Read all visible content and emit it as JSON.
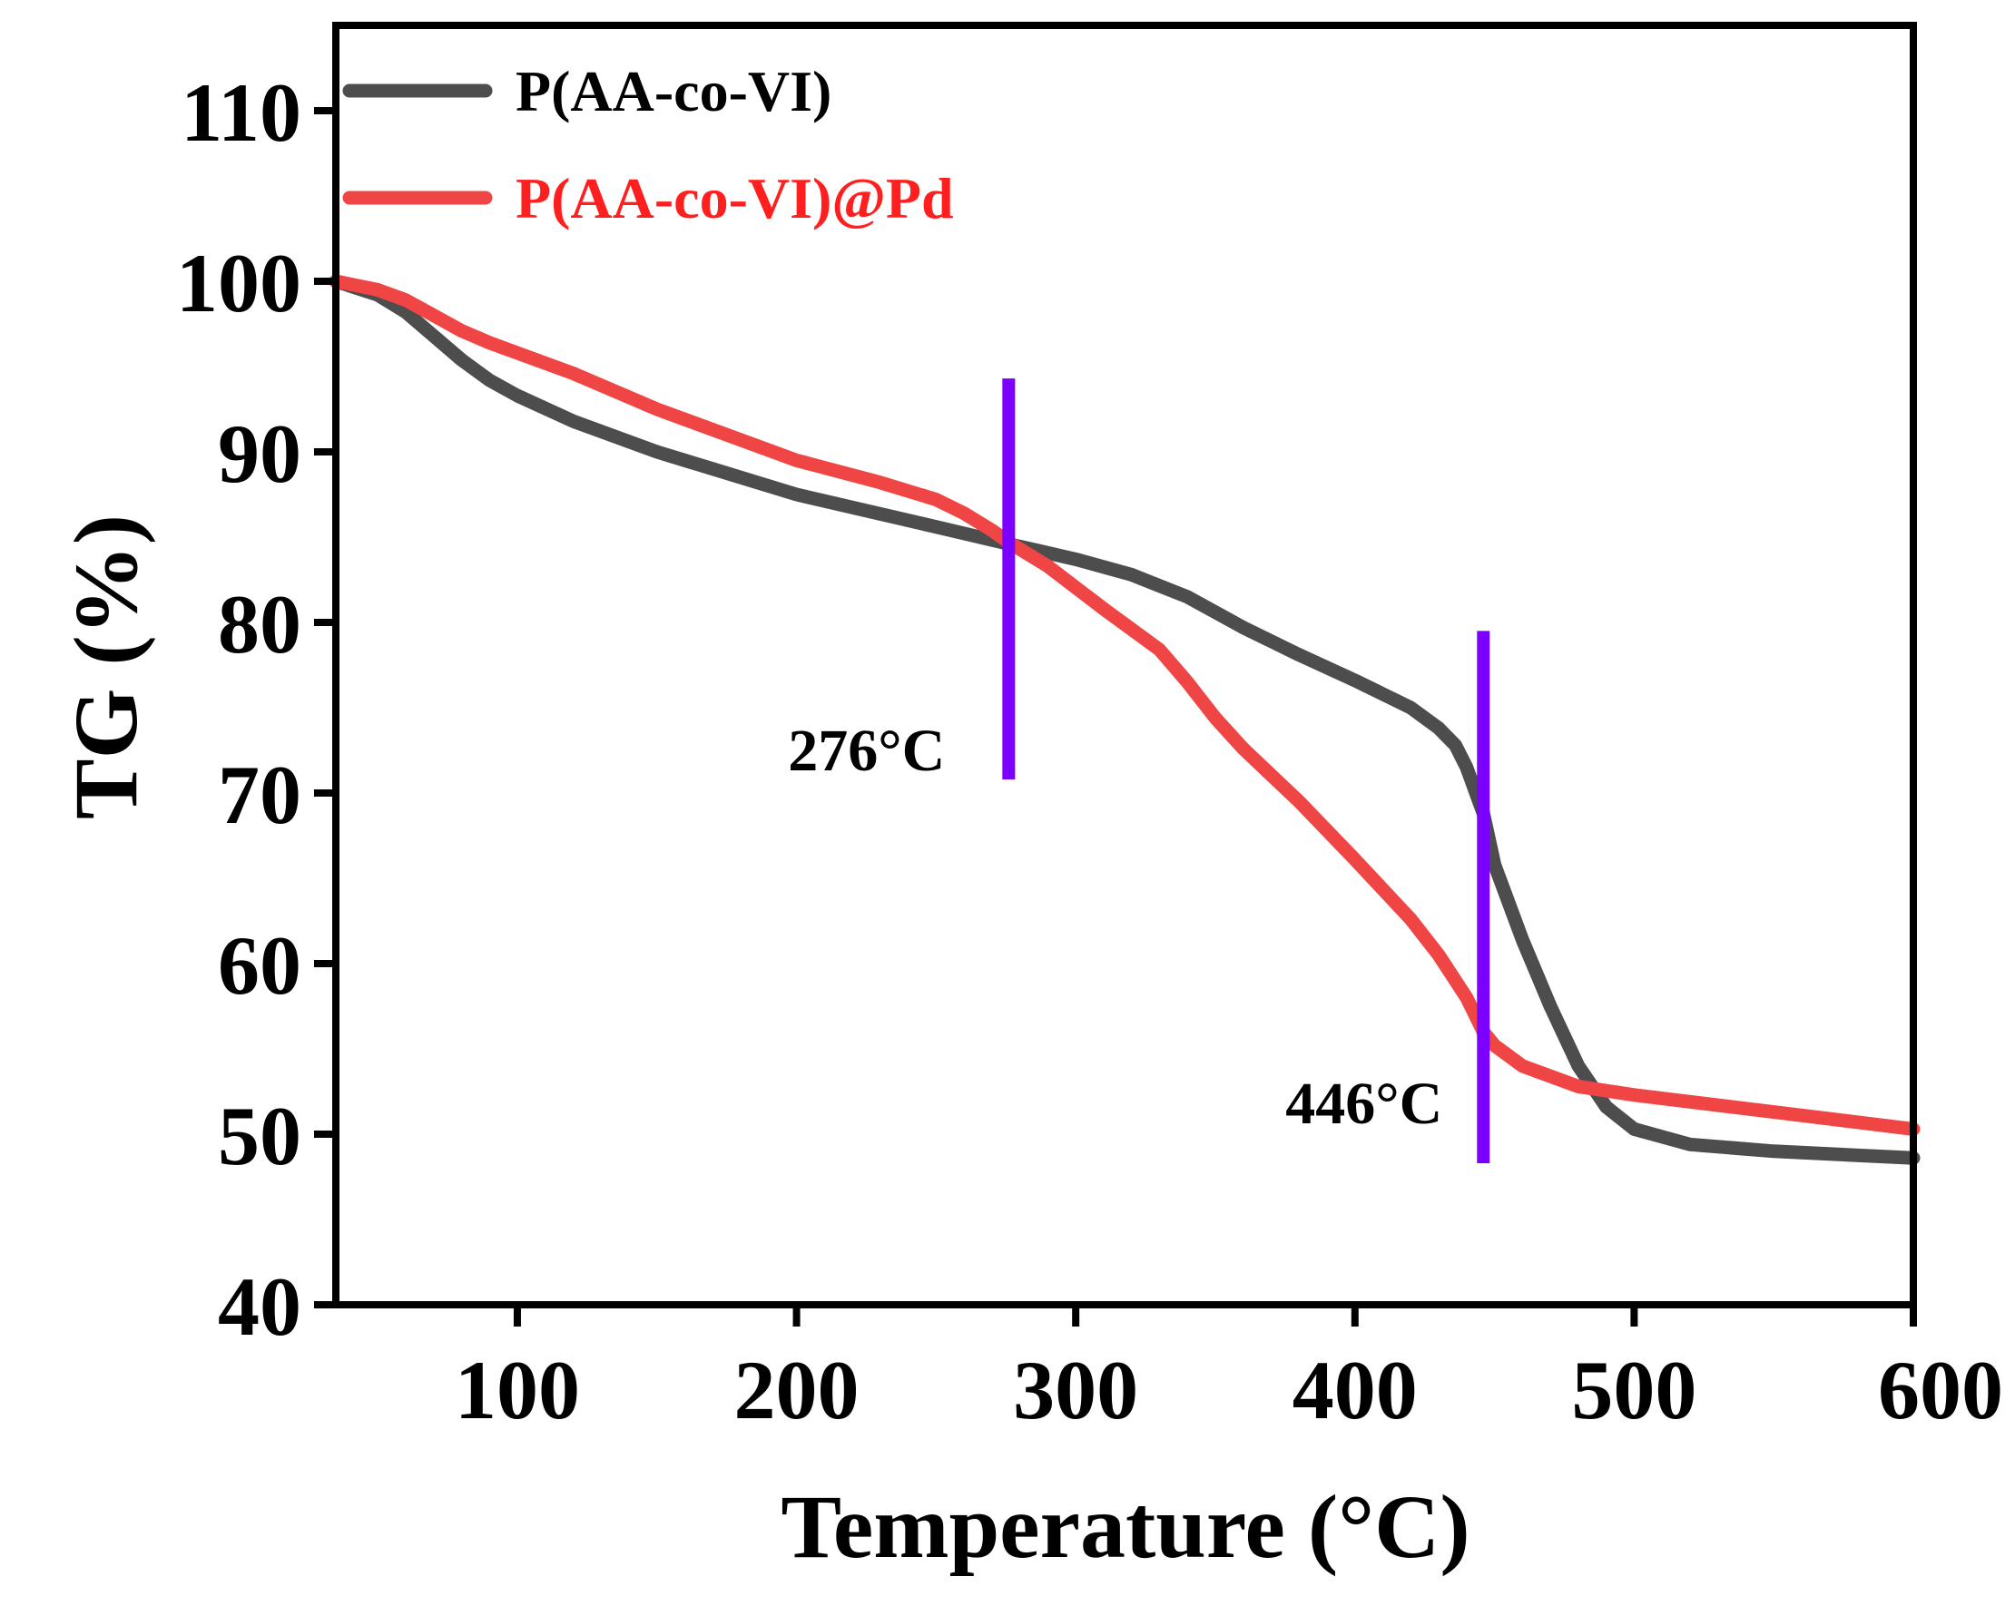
{
  "chart_data": {
    "type": "line",
    "title": "",
    "xlabel": "Temperature (°C)",
    "ylabel": "TG (%)",
    "xlim": [
      35,
      600
    ],
    "ylim": [
      40,
      115
    ],
    "xticks": [
      100,
      200,
      300,
      400,
      500,
      600
    ],
    "yticks": [
      40,
      50,
      60,
      70,
      80,
      90,
      100,
      110
    ],
    "grid": false,
    "legend_position": "top-left",
    "series": [
      {
        "name": "P(AA-co-VI)",
        "color": "#4d4d4d",
        "x": [
          35,
          50,
          60,
          70,
          80,
          90,
          100,
          120,
          150,
          200,
          250,
          276,
          300,
          320,
          340,
          360,
          380,
          400,
          420,
          430,
          436,
          440,
          446,
          450,
          460,
          470,
          480,
          490,
          500,
          520,
          550,
          600
        ],
        "y": [
          100,
          99.2,
          98.2,
          96.8,
          95.4,
          94.2,
          93.3,
          91.8,
          90.0,
          87.5,
          85.6,
          84.6,
          83.7,
          82.8,
          81.5,
          79.7,
          78.1,
          76.6,
          75.0,
          73.8,
          72.8,
          71.5,
          68.8,
          65.8,
          61.4,
          57.5,
          54.0,
          51.6,
          50.3,
          49.4,
          49.0,
          48.6
        ]
      },
      {
        "name": "P(AA-co-VI)@Pd",
        "color": "#f04545",
        "x": [
          35,
          50,
          60,
          70,
          80,
          90,
          100,
          120,
          150,
          200,
          230,
          250,
          260,
          270,
          276,
          290,
          310,
          330,
          340,
          350,
          360,
          380,
          400,
          420,
          430,
          440,
          446,
          450,
          460,
          480,
          500,
          550,
          600
        ],
        "y": [
          100,
          99.5,
          98.9,
          98.0,
          97.1,
          96.4,
          95.8,
          94.6,
          92.5,
          89.5,
          88.2,
          87.2,
          86.4,
          85.4,
          84.7,
          83.3,
          80.8,
          78.4,
          76.5,
          74.4,
          72.6,
          69.5,
          66.1,
          62.6,
          60.5,
          58.0,
          56.0,
          55.2,
          54.0,
          52.8,
          52.3,
          51.3,
          50.3
        ]
      }
    ],
    "annotations": [
      {
        "label": "276°C",
        "x": 276,
        "y_range": [
          70.8,
          94.3
        ],
        "color": "#7b00ff"
      },
      {
        "label": "446°C",
        "x": 446,
        "y_range": [
          48.3,
          79.5
        ],
        "color": "#7b00ff"
      }
    ]
  }
}
